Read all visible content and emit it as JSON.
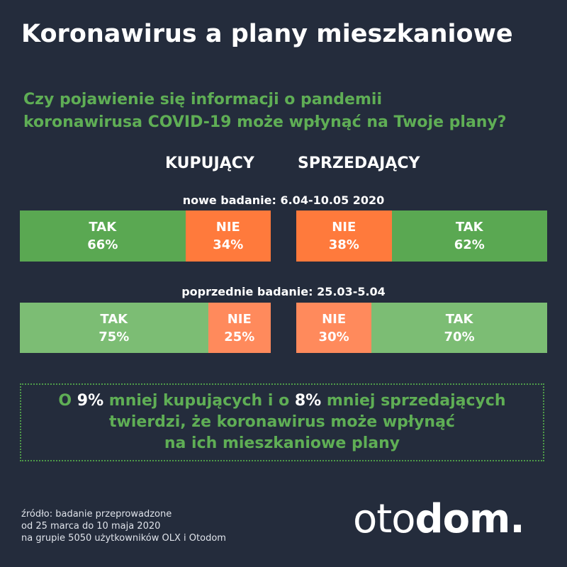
{
  "title": "Koronawirus a plany mieszkaniowe",
  "question": {
    "line1": "Czy pojawienie się informacji o pandemii",
    "line2": "koronawirusa COVID-19 może wpłynąć na Twoje plany?"
  },
  "columns": {
    "buyers": "KUPUJĄCY",
    "sellers": "SPRZEDAJĄCY"
  },
  "colors": {
    "new_yes": "#5aa852",
    "new_no": "#ff7a3c",
    "old_yes": "#7cbd74",
    "old_no": "#ff8a5c",
    "accent": "#5fae55",
    "background": "#242c3c"
  },
  "chart_data": {
    "type": "bar",
    "orientation": "horizontal-stacked",
    "unit": "%",
    "surveys": [
      {
        "label": "nowe badanie: 6.04-10.05 2020",
        "buyers": [
          {
            "label": "TAK",
            "value": 66
          },
          {
            "label": "NIE",
            "value": 34
          }
        ],
        "sellers": [
          {
            "label": "NIE",
            "value": 38
          },
          {
            "label": "TAK",
            "value": 62
          }
        ]
      },
      {
        "label": "poprzednie badanie: 25.03-5.04",
        "buyers": [
          {
            "label": "TAK",
            "value": 75
          },
          {
            "label": "NIE",
            "value": 25
          }
        ],
        "sellers": [
          {
            "label": "NIE",
            "value": 30
          },
          {
            "label": "TAK",
            "value": 70
          }
        ]
      }
    ]
  },
  "summary": {
    "p1": "O ",
    "v1": "9%",
    "p2": " mniej kupujących i o ",
    "v2": "8%",
    "p3": " mniej sprzedających",
    "line2": "twierdzi, że koronawirus może wpłynąć",
    "line3": "na ich mieszkaniowe plany"
  },
  "source": {
    "line1": "źródło: badanie przeprowadzone",
    "line2": "od 25 marca do 10 maja 2020",
    "line3": "na grupie 5050 użytkowników OLX i Otodom"
  },
  "logo": {
    "light": "oto",
    "bold": "dom."
  }
}
